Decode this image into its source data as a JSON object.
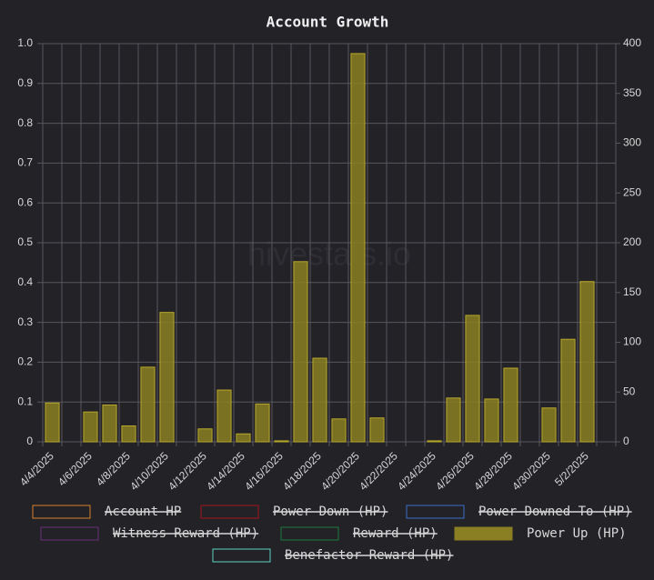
{
  "chart_data": {
    "type": "bar",
    "title": "Account Growth",
    "watermark": "hivestats.io",
    "categories": [
      "4/4/2025",
      null,
      "4/6/2025",
      null,
      "4/8/2025",
      null,
      "4/10/2025",
      null,
      "4/12/2025",
      null,
      "4/14/2025",
      null,
      "4/16/2025",
      null,
      "4/18/2025",
      null,
      "4/20/2025",
      null,
      "4/22/2025",
      null,
      "4/24/2025",
      null,
      "4/26/2025",
      null,
      "4/28/2025",
      null,
      "4/30/2025",
      null,
      "5/2/2025",
      null
    ],
    "series": [
      {
        "name": "Account HP",
        "color": "#d9822b",
        "hidden": true
      },
      {
        "name": "Power Down (HP)",
        "color": "#a3161b",
        "hidden": true
      },
      {
        "name": "Power Downed To (HP)",
        "color": "#3b6fc9",
        "hidden": true
      },
      {
        "name": "Witness Reward (HP)",
        "color": "#6a2f7a",
        "hidden": true
      },
      {
        "name": "Reward (HP)",
        "color": "#1e7b3c",
        "hidden": true
      },
      {
        "name": "Power Up (HP)",
        "color": "#8a7f22",
        "hidden": false,
        "axis": "y2",
        "values": [
          39,
          0,
          30,
          37,
          16,
          75,
          130,
          0,
          13,
          52,
          8,
          38,
          1,
          181,
          84,
          23,
          390,
          24,
          0,
          0,
          1,
          44,
          127,
          43,
          74,
          0,
          34,
          103,
          161,
          0
        ]
      },
      {
        "name": "Benefactor Reward (HP)",
        "color": "#5ed3c0",
        "hidden": true
      }
    ],
    "ylim": [
      0,
      1
    ],
    "yticks": [
      0,
      0.1,
      0.2,
      0.3,
      0.4,
      0.5,
      0.6,
      0.7,
      0.8,
      0.9,
      {
        "value": 1,
        "label": "1.0"
      }
    ],
    "y2lim": [
      0,
      400
    ],
    "y2ticks": [
      0,
      50,
      100,
      150,
      200,
      250,
      300,
      350,
      400
    ],
    "grid": true
  }
}
